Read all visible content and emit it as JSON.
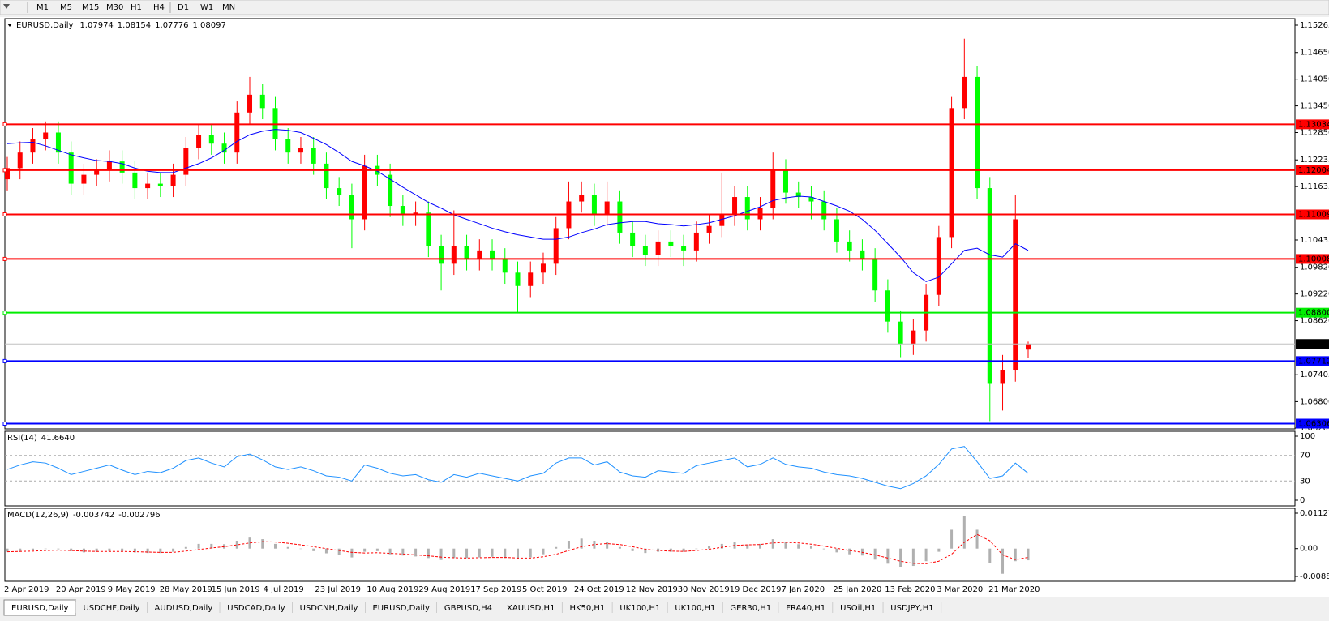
{
  "toolbar": {
    "timeframes": [
      "M1",
      "M5",
      "M15",
      "M30",
      "H1",
      "H4",
      "D1",
      "W1",
      "MN"
    ]
  },
  "chart_data": [
    {
      "type": "candlestick",
      "title": "EURUSD,Daily",
      "ohlc": [
        1.07974,
        1.08154,
        1.07776,
        1.08097
      ],
      "bull_color": "#ff0000",
      "bear_color": "#00ff00",
      "ylim": [
        1.06206,
        1.15265
      ],
      "yticks": [
        1.15265,
        {
          "value": 1.1465,
          "label": "1.14650"
        },
        {
          "value": 1.1405,
          "label": "1.14050"
        },
        {
          "value": 1.1345,
          "label": "1.13450"
        },
        {
          "value": 1.1285,
          "label": "1.12850"
        },
        1.12235,
        1.11635,
        1.10435,
        {
          "value": 1.0982,
          "label": "1.09820"
        },
        {
          "value": 1.0922,
          "label": "1.09220"
        },
        {
          "value": 1.0862,
          "label": "1.08620"
        },
        1.07405,
        {
          "value": 1.068,
          "label": "1.06800"
        },
        1.06206
      ],
      "levels": [
        {
          "value": 1.13034,
          "color": "#ff0000"
        },
        {
          "value": 1.12004,
          "color": "#ff0000"
        },
        {
          "value": 1.11009,
          "color": "#ff0000"
        },
        {
          "value": 1.10008,
          "color": "#ff0000"
        },
        {
          "value": 1.088,
          "label": "1.08800",
          "color": "#00ee00"
        },
        {
          "value": 1.07712,
          "color": "#0000ff"
        },
        {
          "value": 1.06306,
          "color": "#0000ff"
        }
      ],
      "xtick_labels": [
        "2 Apr 2019",
        "20 Apr 2019",
        "9 May 2019",
        "28 May 2019",
        "15 Jun 2019",
        "4 Jul 2019",
        "23 Jul 2019",
        "10 Aug 2019",
        "29 Aug 2019",
        "17 Sep 2019",
        "5 Oct 2019",
        "24 Oct 2019",
        "12 Nov 2019",
        "30 Nov 2019",
        "19 Dec 2019",
        "7 Jan 2020",
        "25 Jan 2020",
        "13 Feb 2020",
        "3 Mar 2020",
        "21 Mar 2020"
      ],
      "open": [
        1.118,
        1.1205,
        1.124,
        1.127,
        1.1285,
        1.124,
        1.117,
        1.119,
        1.12,
        1.122,
        1.1195,
        1.116,
        1.117,
        1.1165,
        1.119,
        1.125,
        1.128,
        1.126,
        1.124,
        1.133,
        1.137,
        1.134,
        1.127,
        1.124,
        1.125,
        1.1215,
        1.116,
        1.1145,
        1.109,
        1.121,
        1.119,
        1.112,
        1.11,
        1.1105,
        1.103,
        1.099,
        1.103,
        1.1,
        1.102,
        1.1,
        1.097,
        1.094,
        1.097,
        1.099,
        1.107,
        1.113,
        1.1145,
        1.11,
        1.113,
        1.106,
        1.103,
        1.101,
        1.104,
        1.103,
        1.102,
        1.106,
        1.1075,
        1.11,
        1.114,
        1.109,
        1.1115,
        1.12,
        1.115,
        1.114,
        1.113,
        1.109,
        1.104,
        1.102,
        1.1,
        1.093,
        1.086,
        1.081,
        1.084,
        1.092,
        1.105,
        1.134,
        1.141,
        1.116,
        1.072,
        1.075,
        1.0797
      ],
      "high": [
        1.123,
        1.1265,
        1.1295,
        1.131,
        1.131,
        1.1265,
        1.1215,
        1.1225,
        1.1245,
        1.1245,
        1.122,
        1.1195,
        1.1195,
        1.1215,
        1.1275,
        1.1305,
        1.1305,
        1.1285,
        1.1355,
        1.141,
        1.1395,
        1.1365,
        1.1295,
        1.1275,
        1.1275,
        1.124,
        1.1185,
        1.117,
        1.1235,
        1.1235,
        1.1215,
        1.1145,
        1.113,
        1.113,
        1.1055,
        1.111,
        1.1055,
        1.1045,
        1.1045,
        1.1025,
        1.0995,
        1.0995,
        1.1015,
        1.1095,
        1.1175,
        1.1175,
        1.117,
        1.1175,
        1.1155,
        1.1085,
        1.1055,
        1.1065,
        1.1065,
        1.1055,
        1.1085,
        1.11,
        1.1195,
        1.1165,
        1.1165,
        1.114,
        1.124,
        1.1225,
        1.1175,
        1.1165,
        1.1155,
        1.1115,
        1.1065,
        1.1045,
        1.1025,
        1.0955,
        1.0885,
        1.0865,
        1.0945,
        1.1075,
        1.1365,
        1.1496,
        1.1435,
        1.1185,
        1.0785,
        1.1145,
        1.0815
      ],
      "low": [
        1.1155,
        1.118,
        1.1215,
        1.1245,
        1.1215,
        1.1145,
        1.1145,
        1.1165,
        1.1175,
        1.117,
        1.1135,
        1.1135,
        1.114,
        1.114,
        1.1165,
        1.1225,
        1.1235,
        1.1215,
        1.1215,
        1.1305,
        1.1315,
        1.1245,
        1.1215,
        1.1215,
        1.119,
        1.1135,
        1.112,
        1.1025,
        1.1065,
        1.1165,
        1.1095,
        1.1075,
        1.1075,
        1.1005,
        1.093,
        1.0965,
        1.0975,
        1.0975,
        1.0975,
        1.0945,
        1.088,
        1.0915,
        1.0945,
        1.0965,
        1.1045,
        1.1105,
        1.1075,
        1.1075,
        1.1035,
        1.1005,
        1.0985,
        1.0985,
        1.1005,
        1.0985,
        1.0995,
        1.1035,
        1.105,
        1.1075,
        1.1065,
        1.1065,
        1.109,
        1.1125,
        1.1115,
        1.109,
        1.1065,
        1.1015,
        1.0995,
        1.0975,
        1.0905,
        1.0835,
        1.078,
        1.0785,
        1.0815,
        1.0895,
        1.1025,
        1.1315,
        1.1135,
        1.0636,
        1.066,
        1.0725,
        1.0778
      ],
      "close": [
        1.1205,
        1.124,
        1.127,
        1.1285,
        1.124,
        1.117,
        1.119,
        1.12,
        1.122,
        1.1195,
        1.116,
        1.117,
        1.1165,
        1.119,
        1.125,
        1.128,
        1.126,
        1.124,
        1.133,
        1.137,
        1.134,
        1.127,
        1.124,
        1.125,
        1.1215,
        1.116,
        1.1145,
        1.109,
        1.121,
        1.119,
        1.112,
        1.11,
        1.1105,
        1.103,
        1.099,
        1.103,
        1.1,
        1.102,
        1.1,
        1.097,
        1.094,
        1.097,
        1.099,
        1.107,
        1.113,
        1.1145,
        1.11,
        1.113,
        1.106,
        1.103,
        1.101,
        1.104,
        1.103,
        1.102,
        1.106,
        1.1075,
        1.11,
        1.114,
        1.109,
        1.1115,
        1.12,
        1.115,
        1.114,
        1.113,
        1.109,
        1.104,
        1.102,
        1.1,
        1.093,
        1.086,
        1.081,
        1.084,
        1.092,
        1.105,
        1.134,
        1.141,
        1.116,
        1.072,
        1.075,
        1.109,
        1.081
      ],
      "ma": {
        "color": "#0000ff",
        "values": [
          1.126,
          1.1262,
          1.1263,
          1.1255,
          1.1245,
          1.1235,
          1.1228,
          1.1222,
          1.122,
          1.1215,
          1.1205,
          1.1198,
          1.1195,
          1.1195,
          1.1205,
          1.1215,
          1.1228,
          1.1245,
          1.1265,
          1.128,
          1.1288,
          1.1292,
          1.129,
          1.1285,
          1.1272,
          1.1258,
          1.124,
          1.122,
          1.121,
          1.1198,
          1.118,
          1.1162,
          1.1145,
          1.1128,
          1.1115,
          1.11,
          1.109,
          1.108,
          1.107,
          1.1062,
          1.1055,
          1.105,
          1.1045,
          1.1045,
          1.105,
          1.106,
          1.1068,
          1.1078,
          1.1082,
          1.1085,
          1.1085,
          1.108,
          1.1078,
          1.1075,
          1.1078,
          1.1082,
          1.109,
          1.1098,
          1.1108,
          1.1118,
          1.1132,
          1.1138,
          1.1142,
          1.114,
          1.113,
          1.112,
          1.1108,
          1.109,
          1.1065,
          1.1035,
          1.1005,
          1.097,
          1.095,
          1.096,
          1.099,
          1.102,
          1.1025,
          1.101,
          1.1005,
          1.1035,
          1.102
        ]
      }
    },
    {
      "type": "line",
      "title": "RSI(14)",
      "last": {
        "value": 41.664,
        "label": "41.6640"
      },
      "color": "#1e90ff",
      "ylim": [
        0,
        100
      ],
      "yticks": [
        100,
        70,
        30,
        0
      ],
      "values": [
        48,
        55,
        60,
        58,
        50,
        40,
        45,
        50,
        55,
        47,
        40,
        45,
        43,
        50,
        62,
        66,
        58,
        52,
        68,
        72,
        63,
        52,
        48,
        52,
        46,
        38,
        36,
        30,
        55,
        50,
        42,
        38,
        40,
        32,
        28,
        40,
        36,
        42,
        38,
        34,
        30,
        38,
        42,
        58,
        66,
        66,
        55,
        60,
        44,
        38,
        36,
        46,
        44,
        42,
        54,
        58,
        62,
        66,
        52,
        56,
        66,
        56,
        52,
        50,
        44,
        40,
        38,
        34,
        28,
        22,
        18,
        26,
        38,
        56,
        80,
        84,
        60,
        34,
        38,
        58,
        42
      ]
    },
    {
      "type": "bar",
      "title": "MACD(12,26,9)",
      "main": -0.003742,
      "signal": -0.002796,
      "color": "#b0b0b0",
      "signal_color": "#ff0000",
      "ylim": [
        -0.008845,
        0.011277
      ],
      "yticks": [
        0.011277,
        {
          "value": 0,
          "label": "0.00"
        },
        -0.008845
      ],
      "values": [
        -0.001,
        -0.0008,
        -0.0005,
        0.0,
        -0.0002,
        -0.0008,
        -0.0012,
        -0.001,
        -0.0008,
        -0.0008,
        -0.0012,
        -0.0014,
        -0.0014,
        -0.001,
        0.0005,
        0.0015,
        0.0015,
        0.0014,
        0.0025,
        0.0035,
        0.003,
        0.0015,
        0.0005,
        0.0,
        -0.0008,
        -0.0015,
        -0.002,
        -0.0028,
        -0.001,
        -0.0008,
        -0.0018,
        -0.0022,
        -0.0025,
        -0.003,
        -0.0036,
        -0.003,
        -0.003,
        -0.0028,
        -0.0026,
        -0.003,
        -0.0034,
        -0.0028,
        -0.0018,
        0.0005,
        0.0025,
        0.0032,
        0.0025,
        0.0022,
        0.0005,
        -0.0008,
        -0.0014,
        -0.001,
        -0.001,
        -0.001,
        0.0,
        0.0008,
        0.0015,
        0.0022,
        0.0012,
        0.0015,
        0.003,
        0.0022,
        0.0014,
        0.0008,
        -0.0002,
        -0.0012,
        -0.0018,
        -0.0022,
        -0.0035,
        -0.0048,
        -0.0058,
        -0.0055,
        -0.004,
        -0.001,
        0.006,
        0.0105,
        0.006,
        -0.0045,
        -0.008,
        -0.004,
        -0.0037
      ],
      "signal_values": [
        -0.001,
        -0.0009,
        -0.0008,
        -0.0006,
        -0.0005,
        -0.0006,
        -0.0008,
        -0.0009,
        -0.0009,
        -0.0009,
        -0.001,
        -0.0011,
        -0.0012,
        -0.0012,
        -0.0008,
        -0.0003,
        0.0002,
        0.0006,
        0.0012,
        0.0018,
        0.0022,
        0.0021,
        0.0017,
        0.0012,
        0.0006,
        0.0,
        -0.0006,
        -0.0012,
        -0.0014,
        -0.0013,
        -0.0015,
        -0.0017,
        -0.002,
        -0.0023,
        -0.0027,
        -0.0029,
        -0.003,
        -0.0029,
        -0.0028,
        -0.0028,
        -0.003,
        -0.003,
        -0.0026,
        -0.0018,
        -0.0006,
        0.0006,
        0.0013,
        0.0016,
        0.0013,
        0.0006,
        -0.0002,
        -0.0006,
        -0.0008,
        -0.0009,
        -0.0006,
        -0.0002,
        0.0004,
        0.001,
        0.0012,
        0.0013,
        0.0018,
        0.002,
        0.0018,
        0.0014,
        0.0008,
        0.0001,
        -0.0006,
        -0.0012,
        -0.002,
        -0.003,
        -0.004,
        -0.0047,
        -0.0048,
        -0.004,
        -0.0018,
        0.002,
        0.0045,
        0.0025,
        -0.002,
        -0.0035,
        -0.0028
      ]
    }
  ],
  "tabs": [
    "EURUSD,Daily",
    "USDCHF,Daily",
    "AUDUSD,Daily",
    "USDCAD,Daily",
    "USDCNH,Daily",
    "EURUSD,Daily",
    "GBPUSD,H4",
    "XAUUSD,H1",
    "HK50,H1",
    "UK100,H1",
    "UK100,H1",
    "GER30,H1",
    "FRA40,H1",
    "USOil,H1",
    "USDJPY,H1"
  ]
}
